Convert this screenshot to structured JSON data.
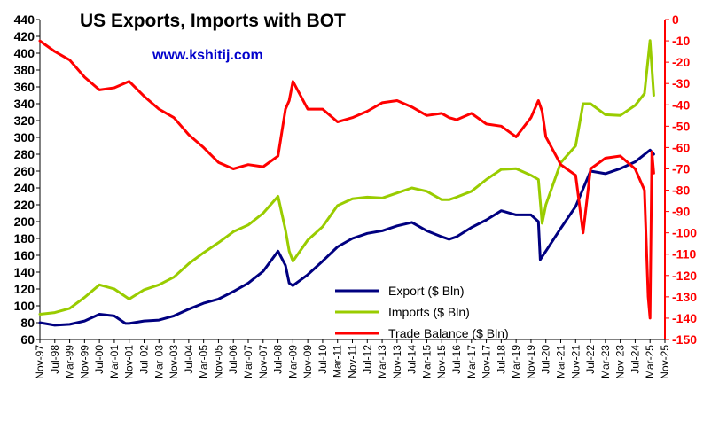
{
  "chart_data": {
    "type": "line",
    "title": "US Exports, Imports  with BOT",
    "watermark": "www.kshitij.com",
    "x_tick_labels": [
      "Nov-97",
      "Jul-98",
      "Mar-99",
      "Nov-99",
      "Jul-00",
      "Mar-01",
      "Nov-01",
      "Jul-02",
      "Mar-03",
      "Nov-03",
      "Jul-04",
      "Mar-05",
      "Nov-05",
      "Jul-06",
      "Mar-07",
      "Nov-07",
      "Jul-08",
      "Mar-09",
      "Nov-09",
      "Jul-10",
      "Mar-11",
      "Nov-11",
      "Jul-12",
      "Mar-13",
      "Nov-13",
      "Jul-14",
      "Mar-15",
      "Nov-15",
      "Jul-16",
      "Mar-17",
      "Nov-17",
      "Jul-18",
      "Mar-19",
      "Nov-19",
      "Jul-20",
      "Mar-21",
      "Nov-21",
      "Jul-22",
      "Mar-23",
      "Nov-23",
      "Jul-24",
      "Mar-25",
      "Nov-25"
    ],
    "x_range": [
      "1997-11",
      "2025-11"
    ],
    "y_left": {
      "range": [
        60,
        440
      ],
      "step": 20,
      "color": "#000000"
    },
    "y_right": {
      "range": [
        -150,
        0
      ],
      "step": 10,
      "color": "#ff0000"
    },
    "legend_position": "bottom-center",
    "series": [
      {
        "name": "Export ($ Bln)",
        "axis": "left",
        "color": "#000080",
        "points": [
          [
            "1997-11",
            80
          ],
          [
            "1998-07",
            77
          ],
          [
            "1999-03",
            78
          ],
          [
            "1999-11",
            82
          ],
          [
            "2000-07",
            90
          ],
          [
            "2001-03",
            88
          ],
          [
            "2001-09",
            79
          ],
          [
            "2001-11",
            79
          ],
          [
            "2002-07",
            82
          ],
          [
            "2003-03",
            83
          ],
          [
            "2003-11",
            88
          ],
          [
            "2004-07",
            96
          ],
          [
            "2005-03",
            103
          ],
          [
            "2005-11",
            108
          ],
          [
            "2006-07",
            117
          ],
          [
            "2007-03",
            127
          ],
          [
            "2007-11",
            141
          ],
          [
            "2008-07",
            165
          ],
          [
            "2008-11",
            148
          ],
          [
            "2009-01",
            127
          ],
          [
            "2009-03",
            124
          ],
          [
            "2009-11",
            137
          ],
          [
            "2010-07",
            153
          ],
          [
            "2011-03",
            170
          ],
          [
            "2011-11",
            180
          ],
          [
            "2012-07",
            186
          ],
          [
            "2013-03",
            189
          ],
          [
            "2013-11",
            195
          ],
          [
            "2014-07",
            199
          ],
          [
            "2015-03",
            189
          ],
          [
            "2015-11",
            182
          ],
          [
            "2016-03",
            179
          ],
          [
            "2016-07",
            182
          ],
          [
            "2017-03",
            193
          ],
          [
            "2017-11",
            202
          ],
          [
            "2018-07",
            213
          ],
          [
            "2019-03",
            208
          ],
          [
            "2019-11",
            208
          ],
          [
            "2020-03",
            200
          ],
          [
            "2020-04",
            155
          ],
          [
            "2020-07",
            165
          ],
          [
            "2021-03",
            192
          ],
          [
            "2021-11",
            218
          ],
          [
            "2022-07",
            260
          ],
          [
            "2023-03",
            257
          ],
          [
            "2023-11",
            263
          ],
          [
            "2024-07",
            271
          ],
          [
            "2025-03",
            285
          ],
          [
            "2025-05",
            280
          ]
        ]
      },
      {
        "name": "Imports ($ Bln)",
        "axis": "left",
        "color": "#99cc00",
        "points": [
          [
            "1997-11",
            90
          ],
          [
            "1998-07",
            92
          ],
          [
            "1999-03",
            97
          ],
          [
            "1999-11",
            110
          ],
          [
            "2000-07",
            125
          ],
          [
            "2001-03",
            120
          ],
          [
            "2001-11",
            108
          ],
          [
            "2002-07",
            119
          ],
          [
            "2003-03",
            125
          ],
          [
            "2003-11",
            134
          ],
          [
            "2004-07",
            150
          ],
          [
            "2005-03",
            163
          ],
          [
            "2005-11",
            175
          ],
          [
            "2006-07",
            188
          ],
          [
            "2007-03",
            196
          ],
          [
            "2007-11",
            210
          ],
          [
            "2008-07",
            230
          ],
          [
            "2008-11",
            190
          ],
          [
            "2009-01",
            165
          ],
          [
            "2009-03",
            153
          ],
          [
            "2009-11",
            178
          ],
          [
            "2010-07",
            194
          ],
          [
            "2011-03",
            219
          ],
          [
            "2011-11",
            227
          ],
          [
            "2012-07",
            229
          ],
          [
            "2013-03",
            228
          ],
          [
            "2013-11",
            234
          ],
          [
            "2014-07",
            240
          ],
          [
            "2015-03",
            236
          ],
          [
            "2015-11",
            226
          ],
          [
            "2016-03",
            226
          ],
          [
            "2016-07",
            229
          ],
          [
            "2017-03",
            236
          ],
          [
            "2017-11",
            250
          ],
          [
            "2018-07",
            262
          ],
          [
            "2019-03",
            263
          ],
          [
            "2019-11",
            255
          ],
          [
            "2020-03",
            250
          ],
          [
            "2020-05",
            198
          ],
          [
            "2020-07",
            220
          ],
          [
            "2021-03",
            270
          ],
          [
            "2021-11",
            290
          ],
          [
            "2022-03",
            340
          ],
          [
            "2022-07",
            340
          ],
          [
            "2023-03",
            327
          ],
          [
            "2023-11",
            326
          ],
          [
            "2024-07",
            338
          ],
          [
            "2024-12",
            352
          ],
          [
            "2025-03",
            415
          ],
          [
            "2025-05",
            350
          ]
        ]
      },
      {
        "name": "Trade Balance ($ Bln)",
        "axis": "right",
        "color": "#ff0000",
        "points": [
          [
            "1997-11",
            -10
          ],
          [
            "1998-07",
            -15
          ],
          [
            "1999-03",
            -19
          ],
          [
            "1999-11",
            -27
          ],
          [
            "2000-07",
            -33
          ],
          [
            "2001-03",
            -32
          ],
          [
            "2001-11",
            -29
          ],
          [
            "2002-07",
            -36
          ],
          [
            "2003-03",
            -42
          ],
          [
            "2003-11",
            -46
          ],
          [
            "2004-07",
            -54
          ],
          [
            "2005-03",
            -60
          ],
          [
            "2005-11",
            -67
          ],
          [
            "2006-07",
            -70
          ],
          [
            "2007-03",
            -68
          ],
          [
            "2007-11",
            -69
          ],
          [
            "2008-07",
            -64
          ],
          [
            "2008-11",
            -42
          ],
          [
            "2009-01",
            -38
          ],
          [
            "2009-03",
            -29
          ],
          [
            "2009-11",
            -42
          ],
          [
            "2010-07",
            -42
          ],
          [
            "2011-03",
            -48
          ],
          [
            "2011-11",
            -46
          ],
          [
            "2012-07",
            -43
          ],
          [
            "2013-03",
            -39
          ],
          [
            "2013-11",
            -38
          ],
          [
            "2014-07",
            -41
          ],
          [
            "2015-03",
            -45
          ],
          [
            "2015-11",
            -44
          ],
          [
            "2016-03",
            -46
          ],
          [
            "2016-07",
            -47
          ],
          [
            "2017-03",
            -44
          ],
          [
            "2017-11",
            -49
          ],
          [
            "2018-07",
            -50
          ],
          [
            "2019-03",
            -55
          ],
          [
            "2019-11",
            -46
          ],
          [
            "2020-03",
            -38
          ],
          [
            "2020-05",
            -43
          ],
          [
            "2020-07",
            -55
          ],
          [
            "2021-03",
            -68
          ],
          [
            "2021-11",
            -73
          ],
          [
            "2022-03",
            -100
          ],
          [
            "2022-07",
            -70
          ],
          [
            "2023-03",
            -65
          ],
          [
            "2023-11",
            -64
          ],
          [
            "2024-07",
            -70
          ],
          [
            "2024-12",
            -80
          ],
          [
            "2025-02",
            -130
          ],
          [
            "2025-03",
            -140
          ],
          [
            "2025-04",
            -62
          ],
          [
            "2025-05",
            -72
          ]
        ]
      }
    ]
  }
}
